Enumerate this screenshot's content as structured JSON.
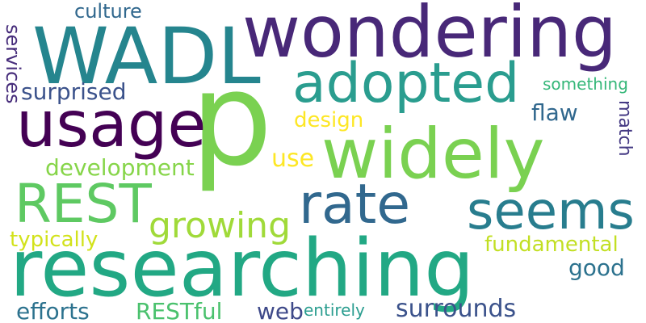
{
  "words": {
    "p": {
      "text": "p",
      "color": "#7ad151"
    },
    "researching": {
      "text": "researching",
      "color": "#22a884"
    },
    "wondering": {
      "text": "wondering",
      "color": "#482878"
    },
    "WADL": {
      "text": "WADL",
      "color": "#25858e"
    },
    "widely": {
      "text": "widely",
      "color": "#7ad151"
    },
    "usage": {
      "text": "usage",
      "color": "#440154"
    },
    "adopted": {
      "text": "adopted",
      "color": "#2a9d8f"
    },
    "rate": {
      "text": "rate",
      "color": "#31688e"
    },
    "seems": {
      "text": "seems",
      "color": "#287d8e"
    },
    "REST": {
      "text": "REST",
      "color": "#5ec962"
    },
    "growing": {
      "text": "growing",
      "color": "#a0da39"
    },
    "surprised": {
      "text": "surprised",
      "color": "#3b528b"
    },
    "culture": {
      "text": "culture",
      "color": "#31688e"
    },
    "services": {
      "text": "services",
      "color": "#472d7b"
    },
    "design": {
      "text": "design",
      "color": "#fde725"
    },
    "flaw": {
      "text": "flaw",
      "color": "#31688e"
    },
    "something": {
      "text": "something",
      "color": "#35b779"
    },
    "match": {
      "text": "match",
      "color": "#443983"
    },
    "development": {
      "text": "development",
      "color": "#86d549"
    },
    "use": {
      "text": "use",
      "color": "#fde725"
    },
    "typically": {
      "text": "typically",
      "color": "#d2e21b"
    },
    "fundamental": {
      "text": "fundamental",
      "color": "#c2df23"
    },
    "good": {
      "text": "good",
      "color": "#2c728e"
    },
    "efforts": {
      "text": "efforts",
      "color": "#2c728e"
    },
    "RESTful": {
      "text": "RESTful",
      "color": "#4ac16d"
    },
    "web": {
      "text": "web",
      "color": "#3e4989"
    },
    "entirely": {
      "text": "entirely",
      "color": "#2a9d8f"
    },
    "surrounds": {
      "text": "surrounds",
      "color": "#3b528b"
    }
  }
}
